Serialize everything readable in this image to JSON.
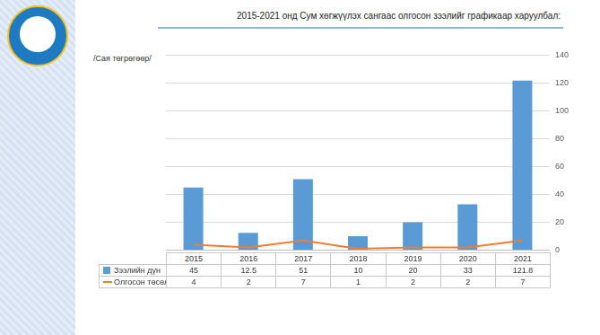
{
  "chart_data": {
    "type": "bar",
    "title": "2015-2021 онд Сум хөгжүүлэх сангаас олгосон зээлийг графикаар харуулбал:",
    "y_label": "/Сая төгрөгөөр/",
    "categories": [
      "2015",
      "2016",
      "2017",
      "2018",
      "2019",
      "2020",
      "2021"
    ],
    "series": [
      {
        "name": "Зээлийн дүн",
        "type": "bar",
        "color": "#5b9bd5",
        "values": [
          45,
          12.5,
          51,
          10,
          20,
          33,
          121.8
        ]
      },
      {
        "name": "Олгосон төсөл",
        "type": "line",
        "color": "#ed7d31",
        "values": [
          4,
          2,
          7,
          1,
          2,
          2,
          7
        ]
      }
    ],
    "ylim": [
      0,
      140
    ],
    "yticks": [
      0,
      20,
      40,
      60,
      80,
      100,
      120,
      140
    ],
    "grid": true,
    "legend": "bottom"
  }
}
